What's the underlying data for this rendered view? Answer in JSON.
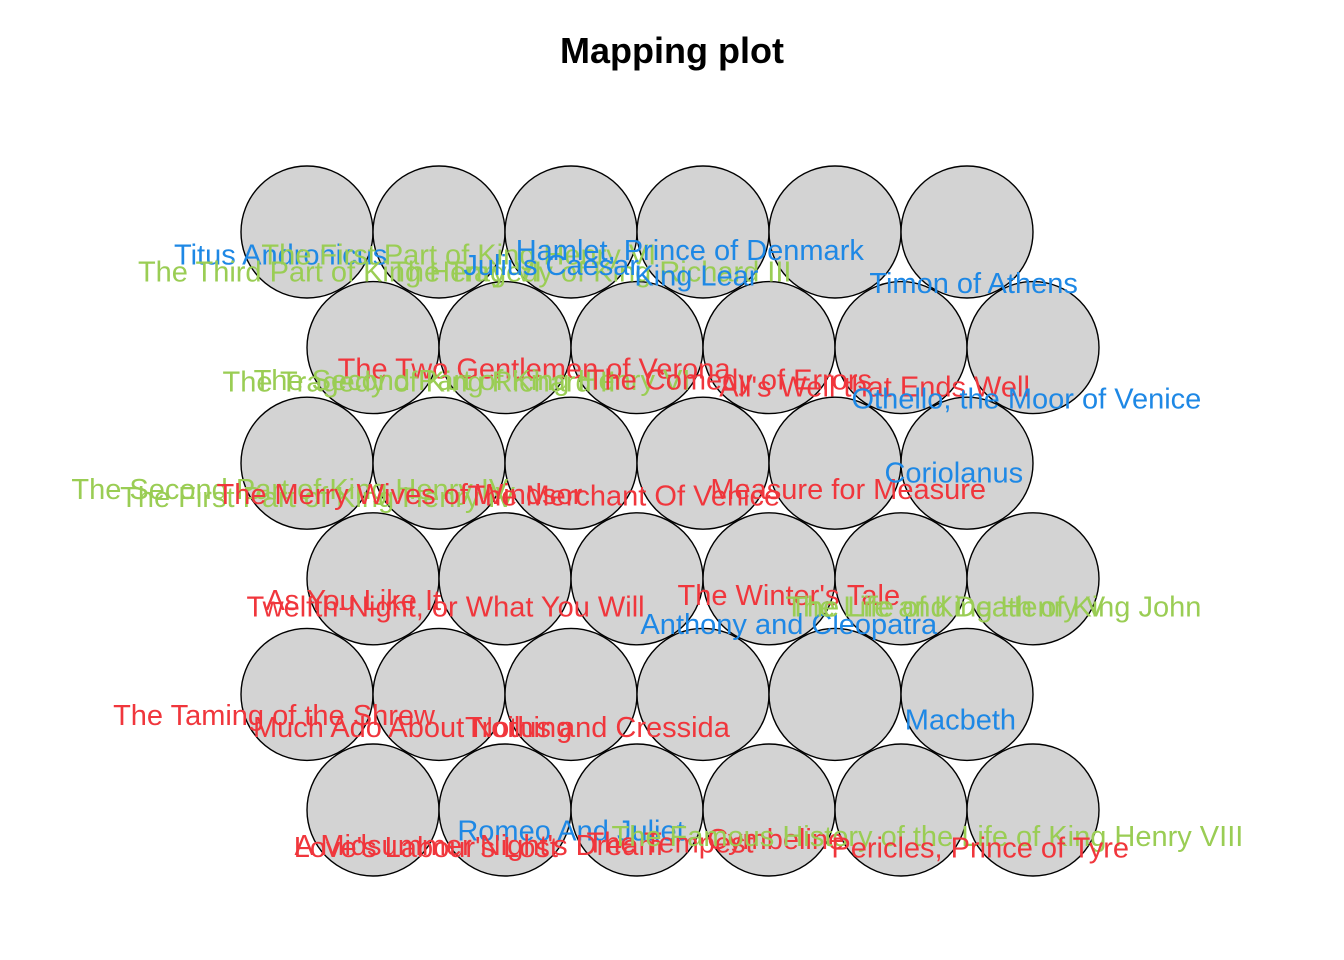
{
  "chart_data": {
    "type": "scatter",
    "title": "Mapping plot",
    "grid": {
      "cols": 6,
      "rows": 6,
      "topology": "hexagonal"
    },
    "genre_colors": {
      "history": "#9acd54",
      "comedy": "#f0363c",
      "tragedy": "#1e88e5"
    },
    "points": [
      {
        "label": "Titus Andronicus",
        "genre": "tragedy",
        "col": 1,
        "row": 1,
        "dx": -0.2,
        "dy": -0.41
      },
      {
        "label": "The First Part of King Henry VI",
        "genre": "history",
        "col": 2,
        "row": 1,
        "dx": 0.15,
        "dy": -0.41
      },
      {
        "label": "The Third Part of King Henry VI",
        "genre": "history",
        "col": 1,
        "row": 1,
        "dx": 0.25,
        "dy": -0.7
      },
      {
        "label": "The Tragedy of King Richard III",
        "genre": "history",
        "col": 3,
        "row": 1,
        "dx": 0.15,
        "dy": -0.7
      },
      {
        "label": "Julius Caesar",
        "genre": "tragedy",
        "col": 3,
        "row": 1,
        "dx": -0.15,
        "dy": -0.59
      },
      {
        "label": "Hamlet, Prince of Denmark",
        "genre": "tragedy",
        "col": 4,
        "row": 1,
        "dx": -0.1,
        "dy": -0.33
      },
      {
        "label": "King Lear",
        "genre": "tragedy",
        "col": 4,
        "row": 1,
        "dx": -0.05,
        "dy": -0.77
      },
      {
        "label": "Timon of Athens",
        "genre": "tragedy",
        "col": 6,
        "row": 1,
        "dx": 0.05,
        "dy": -0.9
      },
      {
        "label": "The Two Gentlemen of Verona",
        "genre": "comedy",
        "col": 2,
        "row": 2,
        "dx": 0.22,
        "dy": -0.38
      },
      {
        "label": "The Second Part of King Henry VI",
        "genre": "history",
        "col": 2,
        "row": 2,
        "dx": -0.25,
        "dy": -0.58
      },
      {
        "label": "The Tragedy of King Richard II",
        "genre": "history",
        "col": 1,
        "row": 2,
        "dx": 0.35,
        "dy": -0.6
      },
      {
        "label": "The Comedy of Errors",
        "genre": "comedy",
        "col": 4,
        "row": 2,
        "dx": -0.3,
        "dy": -0.57
      },
      {
        "label": "All's Well that Ends Well",
        "genre": "comedy",
        "col": 5,
        "row": 2,
        "dx": -0.2,
        "dy": -0.69
      },
      {
        "label": "Othello, the Moor of Venice",
        "genre": "tragedy",
        "col": 6,
        "row": 2,
        "dx": -0.05,
        "dy": -0.9
      },
      {
        "label": "The Second Part of King Henry IV",
        "genre": "history",
        "col": 1,
        "row": 3,
        "dx": -0.13,
        "dy": -0.46
      },
      {
        "label": "The First Part of King Henry IV",
        "genre": "history",
        "col": 1,
        "row": 3,
        "dx": 0.08,
        "dy": -0.6
      },
      {
        "label": "The Merry Wives of Windsor",
        "genre": "comedy",
        "col": 2,
        "row": 3,
        "dx": -0.3,
        "dy": -0.55
      },
      {
        "label": "The Merchant Of Venice",
        "genre": "comedy",
        "col": 3,
        "row": 3,
        "dx": 0.4,
        "dy": -0.58
      },
      {
        "label": "Measure for Measure",
        "genre": "comedy",
        "col": 5,
        "row": 3,
        "dx": 0.1,
        "dy": -0.46
      },
      {
        "label": "Coriolanus",
        "genre": "tragedy",
        "col": 6,
        "row": 3,
        "dx": -0.1,
        "dy": -0.18
      },
      {
        "label": "As You Like It",
        "genre": "comedy",
        "col": 1,
        "row": 4,
        "dx": -0.15,
        "dy": -0.38
      },
      {
        "label": "Twelfth-Night, or What You Will",
        "genre": "comedy",
        "col": 1,
        "row": 4,
        "dx": 0.55,
        "dy": -0.5
      },
      {
        "label": "The Winter's Tale",
        "genre": "comedy",
        "col": 4,
        "row": 4,
        "dx": 0.15,
        "dy": -0.3
      },
      {
        "label": "Anthony and Cleopatra",
        "genre": "tragedy",
        "col": 4,
        "row": 4,
        "dx": 0.15,
        "dy": -0.8
      },
      {
        "label": "The Life of King Henry V",
        "genre": "history",
        "col": 5,
        "row": 4,
        "dx": 0.35,
        "dy": -0.5
      },
      {
        "label": "The Life and Death of King John",
        "genre": "history",
        "col": 6,
        "row": 4,
        "dx": -0.3,
        "dy": -0.5
      },
      {
        "label": "The Taming of the Shrew",
        "genre": "comedy",
        "col": 1,
        "row": 5,
        "dx": -0.25,
        "dy": -0.37
      },
      {
        "label": "Much Ado About Nothing",
        "genre": "comedy",
        "col": 2,
        "row": 5,
        "dx": -0.2,
        "dy": -0.58
      },
      {
        "label": "Troilus and Cressida",
        "genre": "comedy",
        "col": 3,
        "row": 5,
        "dx": 0.2,
        "dy": -0.58
      },
      {
        "label": "Macbeth",
        "genre": "tragedy",
        "col": 6,
        "row": 5,
        "dx": -0.05,
        "dy": -0.45
      },
      {
        "label": "Romeo And Juliet",
        "genre": "tragedy",
        "col": 2,
        "row": 6,
        "dx": 0.5,
        "dy": -0.37
      },
      {
        "label": "A Midsummer Night's Dream",
        "genre": "comedy",
        "col": 2,
        "row": 6,
        "dx": -0.2,
        "dy": -0.62
      },
      {
        "label": "Love's Labour's Lost",
        "genre": "comedy",
        "col": 1,
        "row": 6,
        "dx": 0.4,
        "dy": -0.66
      },
      {
        "label": "The Tempest",
        "genre": "comedy",
        "col": 3,
        "row": 6,
        "dx": 0.25,
        "dy": -0.58
      },
      {
        "label": "Cymbeline",
        "genre": "comedy",
        "col": 4,
        "row": 6,
        "dx": 0.05,
        "dy": -0.52
      },
      {
        "label": "The Famous History of the Life of King Henry VIII",
        "genre": "history",
        "col": 5,
        "row": 6,
        "dx": 0.2,
        "dy": -0.47
      },
      {
        "label": "Pericles, Prince of Tyre",
        "genre": "comedy",
        "col": 6,
        "row": 6,
        "dx": -0.4,
        "dy": -0.67
      }
    ]
  }
}
